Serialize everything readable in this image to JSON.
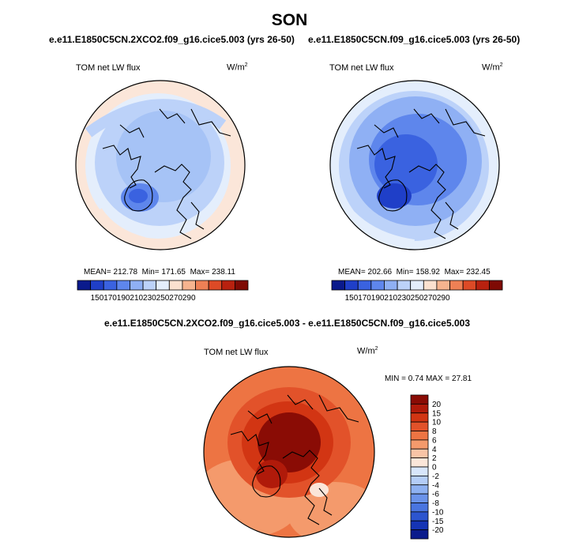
{
  "season": "SON",
  "panels": [
    {
      "case": "e.e11.E1850C5CN.2XCO2.f09_g16.cice5.003 (yrs 26-50)",
      "variable": "TOM net LW flux",
      "units": "W/m",
      "units_sup": "2",
      "mean_label": "MEAN= 212.78",
      "min_label": "Min= 171.65",
      "max_label": "Max= 238.11"
    },
    {
      "case": "e.e11.E1850C5CN.f09_g16.cice5.003 (yrs 26-50)",
      "variable": "TOM net LW flux",
      "units": "W/m",
      "units_sup": "2",
      "mean_label": "MEAN= 202.66",
      "min_label": "Min= 158.92",
      "max_label": "Max= 232.45"
    }
  ],
  "diff_panel": {
    "title": "e.e11.E1850C5CN.2XCO2.f09_g16.cice5.003 - e.e11.E1850C5CN.f09_g16.cice5.003",
    "variable": "TOM net LW flux",
    "units": "W/m",
    "units_sup": "2",
    "minmax_label": "MIN =   0.74 MAX =  27.81"
  },
  "colorbar_abs": {
    "ticks": [
      "150",
      "170",
      "190",
      "210",
      "230",
      "250",
      "270",
      "290"
    ],
    "colors": [
      "#0a1a8c",
      "#1f3fc8",
      "#3a62e0",
      "#5e86ec",
      "#8fb0f4",
      "#bcd2f9",
      "#e4eefc",
      "#fbe1cf",
      "#f6b48f",
      "#ee8055",
      "#dd4a26",
      "#b8210f",
      "#7f0a04"
    ]
  },
  "colorbar_diff": {
    "ticks": [
      "20",
      "15",
      "10",
      "8",
      "6",
      "4",
      "2",
      "0",
      "-2",
      "-4",
      "-6",
      "-8",
      "-10",
      "-15",
      "-20"
    ],
    "colors": [
      "#8a0c05",
      "#b01a0a",
      "#d23513",
      "#e2522a",
      "#ed7443",
      "#f49a6c",
      "#f8c4a6",
      "#fbe6d9",
      "#d8e6fb",
      "#b4cdf7",
      "#8eb1f1",
      "#6b93ea",
      "#4a75e0",
      "#2c55cf",
      "#1534b5",
      "#0a1b8c"
    ]
  },
  "maps": [
    {
      "style": "cool-light"
    },
    {
      "style": "cool-dark"
    },
    {
      "style": "warm-diff"
    }
  ]
}
